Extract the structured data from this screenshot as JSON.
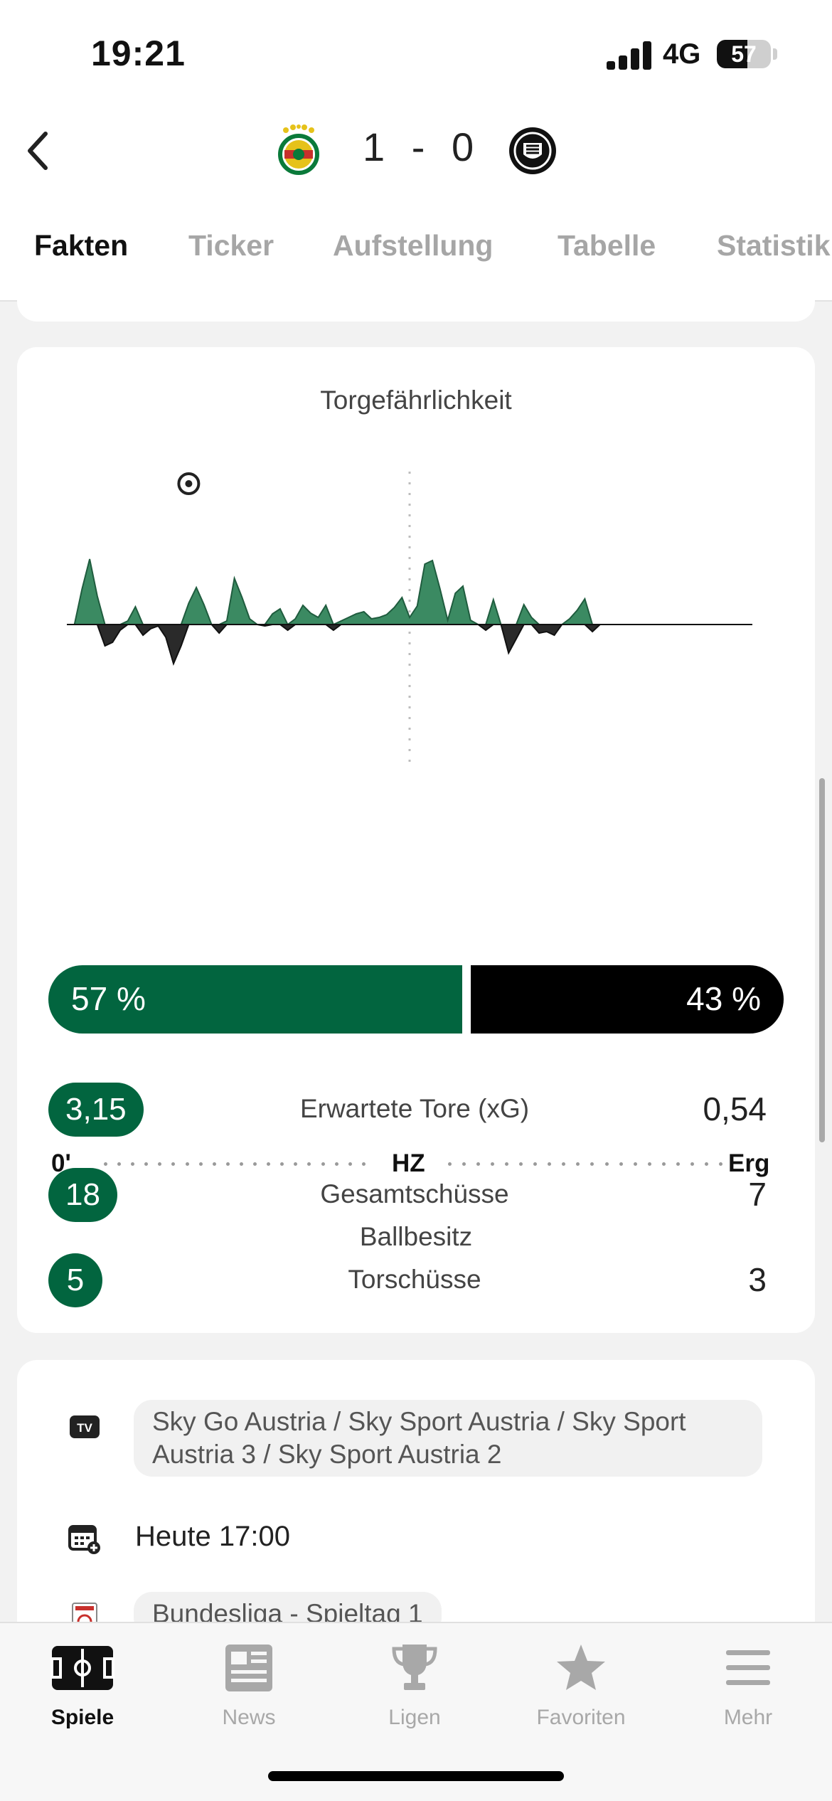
{
  "status_bar": {
    "time": "19:21",
    "network": "4G",
    "battery": "57",
    "battery_level": 0.57
  },
  "header": {
    "score_home": "1",
    "score_separator": "-",
    "score_away": "0"
  },
  "tabs": [
    {
      "label": "Fakten",
      "active": true
    },
    {
      "label": "Ticker",
      "active": false
    },
    {
      "label": "Aufstellung",
      "active": false
    },
    {
      "label": "Tabelle",
      "active": false
    },
    {
      "label": "Statistik",
      "active": false
    }
  ],
  "momentum": {
    "title": "Torgefährlichkeit",
    "axis_start": "0'",
    "axis_mid": "HZ",
    "axis_end": "Erg",
    "goal_marker_minute": 16,
    "home_color": "#3b8a62",
    "away_color": "#2a2a2a"
  },
  "chart_data": {
    "type": "area",
    "x": [
      0,
      1,
      2,
      3,
      4,
      5,
      6,
      7,
      8,
      9,
      10,
      11,
      12,
      13,
      14,
      15,
      16,
      17,
      18,
      19,
      20,
      21,
      22,
      23,
      24,
      25,
      26,
      27,
      28,
      29,
      30,
      31,
      32,
      33,
      34,
      35,
      36,
      37,
      38,
      39,
      40,
      41,
      42,
      43,
      44,
      45,
      46,
      47,
      48,
      49,
      50,
      51,
      52,
      53,
      54,
      55,
      56,
      57,
      58,
      59,
      60,
      61,
      62,
      63,
      64,
      65,
      66,
      67,
      68,
      69,
      70,
      71,
      72,
      73,
      74,
      75,
      76,
      77,
      78,
      79,
      80,
      81,
      82,
      83,
      84,
      85,
      86,
      87,
      88,
      89,
      90
    ],
    "series": [
      {
        "values": [
          0,
          0,
          50,
          92,
          40,
          -30,
          -25,
          -8,
          5,
          25,
          -15,
          -6,
          -2,
          -18,
          -55,
          -30,
          30,
          52,
          28,
          0,
          -12,
          5,
          65,
          38,
          8,
          0,
          -2,
          15,
          22,
          -8,
          8,
          27,
          16,
          10,
          27,
          -8,
          5,
          10,
          15,
          18,
          8,
          10,
          14,
          24,
          38,
          10,
          26,
          85,
          90,
          50,
          6,
          44,
          54,
          6,
          0,
          -8,
          35,
          0,
          -40,
          -20,
          28,
          10,
          -12,
          -10,
          -15,
          0,
          8,
          20,
          36,
          -10,
          0,
          0,
          0,
          0,
          0,
          0,
          0,
          0,
          0,
          0,
          0,
          0,
          0,
          0,
          0,
          0,
          0,
          0,
          0,
          0,
          0
        ]
      }
    ],
    "xlabel": "",
    "ylabel": ""
  },
  "possession": {
    "title": "Ballbesitz",
    "home": "57 %",
    "away": "43 %",
    "home_fraction": 0.57
  },
  "stats": [
    {
      "label": "Erwartete Tore (xG)",
      "home": "3,15",
      "away": "0,54"
    },
    {
      "label": "Gesamtschüsse",
      "home": "18",
      "away": "7"
    },
    {
      "label": "Torschüsse",
      "home": "5",
      "away": "3"
    }
  ],
  "info": {
    "tv_icon_label": "TV",
    "tv": "Sky Go Austria / Sky Sport Austria / Sky Sport Austria 3 / Sky Sport Austria 2",
    "kickoff": "Heute 17:00",
    "league": "Bundesliga - Spieltag 1"
  },
  "bottom_nav": [
    {
      "label": "Spiele",
      "icon": "pitch-icon",
      "active": true
    },
    {
      "label": "News",
      "icon": "newspaper-icon",
      "active": false
    },
    {
      "label": "Ligen",
      "icon": "trophy-icon",
      "active": false
    },
    {
      "label": "Favoriten",
      "icon": "star-icon",
      "active": false
    },
    {
      "label": "Mehr",
      "icon": "menu-icon",
      "active": false
    }
  ]
}
